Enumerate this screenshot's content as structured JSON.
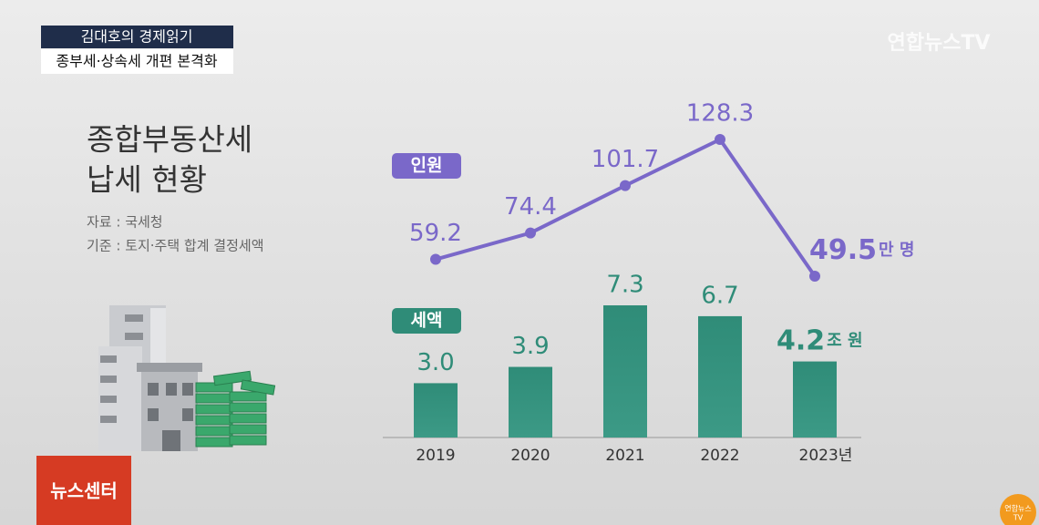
{
  "broadcast": {
    "program": "김대호의 경제읽기",
    "headline": "종부세·상속세 개편 본격화",
    "logo": "연합뉴스TV",
    "corner_label": "뉴스센터",
    "corner_logo": [
      "연합뉴스",
      "TV"
    ]
  },
  "panel": {
    "title": [
      "종합부동산세",
      "납세 현황"
    ],
    "notes": [
      "자료 : 국세청",
      "기준 : 토지·주택 합계 결정세액"
    ]
  },
  "chart_data": [
    {
      "type": "line",
      "title": "인원",
      "unit": "만 명",
      "color": "#7a68c9",
      "categories": [
        "2019",
        "2020",
        "2021",
        "2022",
        "2023년"
      ],
      "values": [
        59.2,
        74.4,
        101.7,
        128.3,
        49.5
      ]
    },
    {
      "type": "bar",
      "title": "세액",
      "unit": "조 원",
      "color": "#2f8c78",
      "categories": [
        "2019",
        "2020",
        "2021",
        "2022",
        "2023년"
      ],
      "values": [
        3.0,
        3.9,
        7.3,
        6.7,
        4.2
      ],
      "value_labels": [
        "3.0",
        "3.9",
        "7.3",
        "6.7",
        "4.2"
      ]
    }
  ]
}
